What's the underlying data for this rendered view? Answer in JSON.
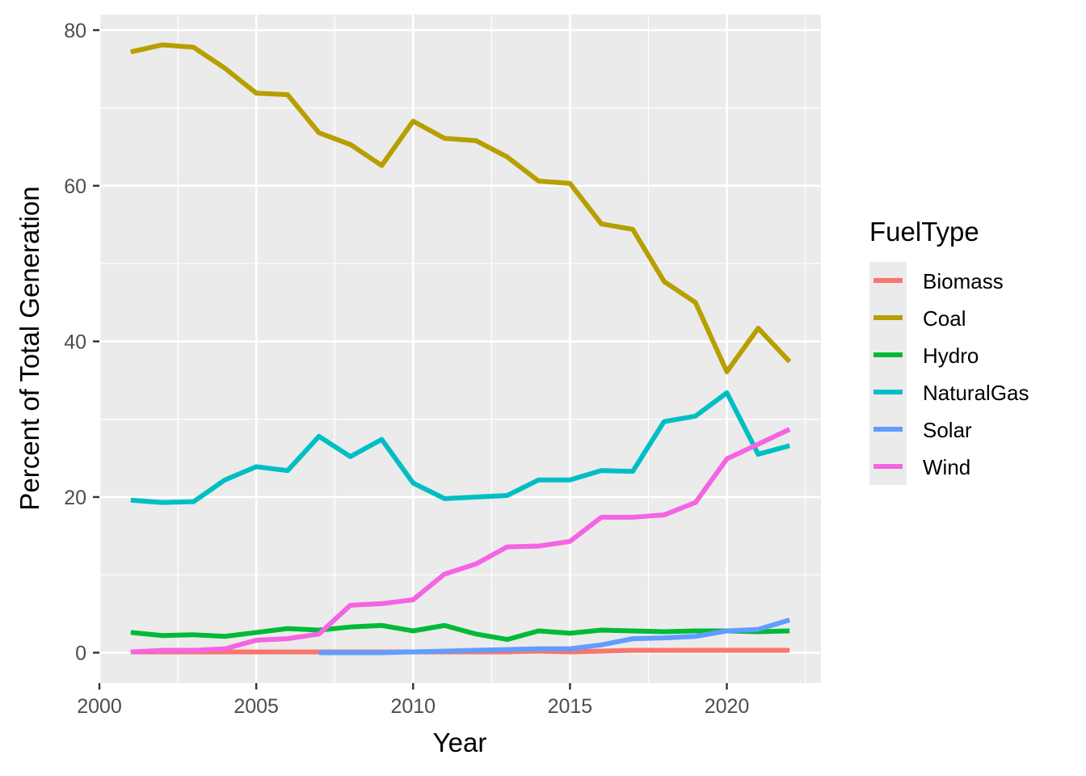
{
  "chart_data": {
    "type": "line",
    "xlabel": "Year",
    "ylabel": "Percent of Total Generation",
    "xlim": [
      2000,
      2023
    ],
    "ylim": [
      -3.9,
      82.0
    ],
    "x_ticks": [
      2000,
      2005,
      2010,
      2015,
      2020
    ],
    "x_tick_labels": [
      "2000",
      "2005",
      "2010",
      "2015",
      "2020"
    ],
    "y_ticks": [
      0,
      20,
      40,
      60,
      80
    ],
    "y_tick_labels": [
      "0",
      "20",
      "40",
      "60",
      "80"
    ],
    "grid": true,
    "legend_title": "FuelType",
    "legend_position": "right",
    "series": [
      {
        "name": "Biomass",
        "color": "#F8766D",
        "x": [
          2001,
          2002,
          2003,
          2004,
          2005,
          2006,
          2007,
          2008,
          2009,
          2010,
          2011,
          2012,
          2013,
          2014,
          2015,
          2016,
          2017,
          2018,
          2019,
          2020,
          2021,
          2022
        ],
        "values": [
          0.1,
          0.1,
          0.1,
          0.1,
          0.1,
          0.1,
          0.1,
          0.1,
          0.1,
          0.1,
          0.1,
          0.1,
          0.1,
          0.2,
          0.1,
          0.2,
          0.3,
          0.3,
          0.3,
          0.3,
          0.3,
          0.3
        ]
      },
      {
        "name": "Coal",
        "color": "#B79F00",
        "x": [
          2001,
          2002,
          2003,
          2004,
          2005,
          2006,
          2007,
          2008,
          2009,
          2010,
          2011,
          2012,
          2013,
          2014,
          2015,
          2016,
          2017,
          2018,
          2019,
          2020,
          2021,
          2022
        ],
        "values": [
          77.2,
          78.1,
          77.8,
          75.1,
          71.9,
          71.7,
          66.8,
          65.3,
          62.6,
          68.3,
          66.1,
          65.8,
          63.7,
          60.6,
          60.3,
          55.1,
          54.4,
          47.7,
          45.0,
          36.1,
          41.7,
          37.4
        ]
      },
      {
        "name": "Hydro",
        "color": "#00BA38",
        "x": [
          2001,
          2002,
          2003,
          2004,
          2005,
          2006,
          2007,
          2008,
          2009,
          2010,
          2011,
          2012,
          2013,
          2014,
          2015,
          2016,
          2017,
          2018,
          2019,
          2020,
          2021,
          2022
        ],
        "values": [
          2.6,
          2.2,
          2.3,
          2.1,
          2.6,
          3.1,
          2.9,
          3.3,
          3.5,
          2.8,
          3.5,
          2.4,
          1.7,
          2.8,
          2.5,
          2.9,
          2.8,
          2.7,
          2.8,
          2.8,
          2.7,
          2.8
        ]
      },
      {
        "name": "NaturalGas",
        "color": "#00BFC4",
        "x": [
          2001,
          2002,
          2003,
          2004,
          2005,
          2006,
          2007,
          2008,
          2009,
          2010,
          2011,
          2012,
          2013,
          2014,
          2015,
          2016,
          2017,
          2018,
          2019,
          2020,
          2021,
          2022
        ],
        "values": [
          19.6,
          19.3,
          19.4,
          22.2,
          23.9,
          23.4,
          27.8,
          25.2,
          27.4,
          21.8,
          19.8,
          20.0,
          20.2,
          22.2,
          22.2,
          23.4,
          23.3,
          29.7,
          30.4,
          33.4,
          25.5,
          26.6
        ]
      },
      {
        "name": "Solar",
        "color": "#619CFF",
        "x": [
          2007,
          2008,
          2009,
          2010,
          2011,
          2012,
          2013,
          2014,
          2015,
          2016,
          2017,
          2018,
          2019,
          2020,
          2021,
          2022
        ],
        "values": [
          0.0,
          0.0,
          0.0,
          0.1,
          0.2,
          0.3,
          0.4,
          0.5,
          0.5,
          1.0,
          1.8,
          1.9,
          2.1,
          2.8,
          3.0,
          4.2
        ]
      },
      {
        "name": "Wind",
        "color": "#F564E3",
        "x": [
          2001,
          2002,
          2003,
          2004,
          2005,
          2006,
          2007,
          2008,
          2009,
          2010,
          2011,
          2012,
          2013,
          2014,
          2015,
          2016,
          2017,
          2018,
          2019,
          2020,
          2021,
          2022
        ],
        "values": [
          0.1,
          0.3,
          0.3,
          0.5,
          1.6,
          1.8,
          2.4,
          6.1,
          6.3,
          6.8,
          10.1,
          11.4,
          13.6,
          13.7,
          14.3,
          17.4,
          17.4,
          17.7,
          19.3,
          24.9,
          26.8,
          28.7
        ]
      }
    ]
  }
}
